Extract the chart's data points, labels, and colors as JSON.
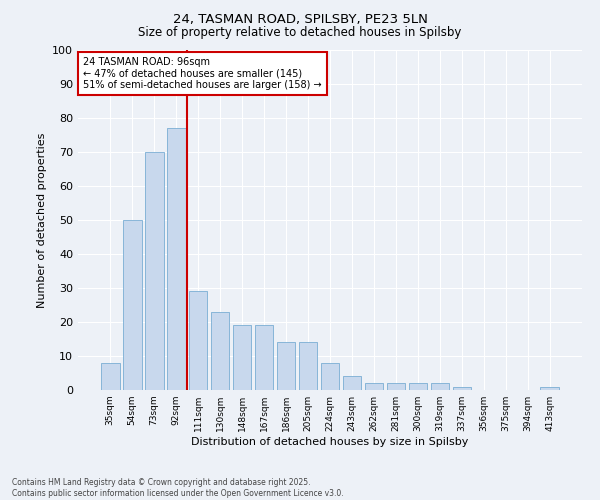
{
  "title1": "24, TASMAN ROAD, SPILSBY, PE23 5LN",
  "title2": "Size of property relative to detached houses in Spilsby",
  "xlabel": "Distribution of detached houses by size in Spilsby",
  "ylabel": "Number of detached properties",
  "categories": [
    "35sqm",
    "54sqm",
    "73sqm",
    "92sqm",
    "111sqm",
    "130sqm",
    "148sqm",
    "167sqm",
    "186sqm",
    "205sqm",
    "224sqm",
    "243sqm",
    "262sqm",
    "281sqm",
    "300sqm",
    "319sqm",
    "337sqm",
    "356sqm",
    "375sqm",
    "394sqm",
    "413sqm"
  ],
  "values": [
    8,
    50,
    70,
    77,
    29,
    23,
    19,
    19,
    14,
    14,
    8,
    4,
    2,
    2,
    2,
    2,
    1,
    0,
    0,
    0,
    1
  ],
  "bar_color": "#c8d8ed",
  "bar_edge_color": "#7aaed4",
  "vline_x": 3.5,
  "vline_color": "#cc0000",
  "annotation_text": "24 TASMAN ROAD: 96sqm\n← 47% of detached houses are smaller (145)\n51% of semi-detached houses are larger (158) →",
  "annotation_box_color": "#ffffff",
  "annotation_box_edge_color": "#cc0000",
  "ylim": [
    0,
    100
  ],
  "yticks": [
    0,
    10,
    20,
    30,
    40,
    50,
    60,
    70,
    80,
    90,
    100
  ],
  "footer": "Contains HM Land Registry data © Crown copyright and database right 2025.\nContains public sector information licensed under the Open Government Licence v3.0.",
  "background_color": "#edf1f7"
}
